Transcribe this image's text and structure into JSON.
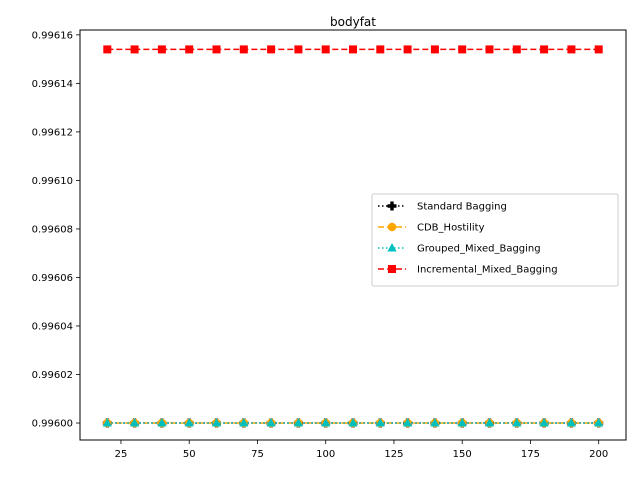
{
  "chart_data": {
    "type": "line",
    "title": "bodyfat",
    "xlabel": "",
    "ylabel": "",
    "xlim": [
      10,
      210
    ],
    "ylim": [
      0.995993,
      0.996162
    ],
    "x_ticks": [
      25,
      50,
      75,
      100,
      125,
      150,
      175,
      200
    ],
    "x_tick_labels": [
      "25",
      "50",
      "75",
      "100",
      "125",
      "150",
      "175",
      "200"
    ],
    "y_ticks": [
      0.996,
      0.99602,
      0.99604,
      0.99606,
      0.99608,
      0.9961,
      0.99612,
      0.99614,
      0.99616
    ],
    "y_tick_labels": [
      "0.99600",
      "0.99602",
      "0.99604",
      "0.99606",
      "0.99608",
      "0.99610",
      "0.99612",
      "0.99614",
      "0.99616"
    ],
    "x": [
      20,
      30,
      40,
      50,
      60,
      70,
      80,
      90,
      100,
      110,
      120,
      130,
      140,
      150,
      160,
      170,
      180,
      190,
      200
    ],
    "legend_position": "center-right",
    "grid": false,
    "series": [
      {
        "name": "Standard Bagging",
        "color": "#000000",
        "marker": "plus",
        "linestyle": "dotted",
        "values": [
          0.996,
          0.996,
          0.996,
          0.996,
          0.996,
          0.996,
          0.996,
          0.996,
          0.996,
          0.996,
          0.996,
          0.996,
          0.996,
          0.996,
          0.996,
          0.996,
          0.996,
          0.996,
          0.996
        ]
      },
      {
        "name": "CDB_Hostility",
        "color": "#ffa500",
        "marker": "circle",
        "linestyle": "dashed",
        "values": [
          0.996,
          0.996,
          0.996,
          0.996,
          0.996,
          0.996,
          0.996,
          0.996,
          0.996,
          0.996,
          0.996,
          0.996,
          0.996,
          0.996,
          0.996,
          0.996,
          0.996,
          0.996,
          0.996
        ]
      },
      {
        "name": "Grouped_Mixed_Bagging",
        "color": "#00bfbf",
        "marker": "triangle",
        "linestyle": "dotted",
        "values": [
          0.996,
          0.996,
          0.996,
          0.996,
          0.996,
          0.996,
          0.996,
          0.996,
          0.996,
          0.996,
          0.996,
          0.996,
          0.996,
          0.996,
          0.996,
          0.996,
          0.996,
          0.996,
          0.996
        ]
      },
      {
        "name": "Incremental_Mixed_Bagging",
        "color": "#ff0000",
        "marker": "square",
        "linestyle": "dashed",
        "values": [
          0.996154,
          0.996154,
          0.996154,
          0.996154,
          0.996154,
          0.996154,
          0.996154,
          0.996154,
          0.996154,
          0.996154,
          0.996154,
          0.996154,
          0.996154,
          0.996154,
          0.996154,
          0.996154,
          0.996154,
          0.996154,
          0.996154
        ]
      }
    ]
  }
}
